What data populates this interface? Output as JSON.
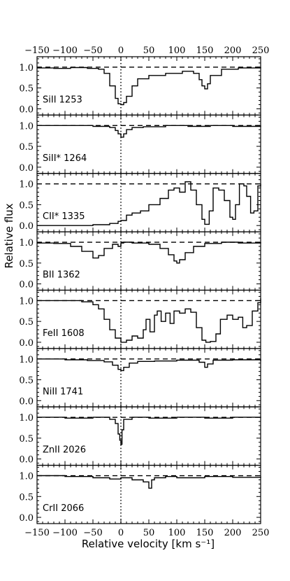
{
  "chart_data": {
    "type": "line",
    "xlabel": "Relative velocity [km s⁻¹]",
    "ylabel": "Relative flux",
    "xlim": [
      -150,
      250
    ],
    "ylim": [
      -0.15,
      1.25
    ],
    "xticks": [
      -150,
      -100,
      -50,
      0,
      50,
      100,
      150,
      200,
      250
    ],
    "xtick_labels": [
      "−150",
      "−100",
      "−50",
      "0",
      "50",
      "100",
      "150",
      "200",
      "250"
    ],
    "yticks": [
      0.0,
      0.5,
      1.0
    ],
    "ytick_labels": [
      "0.0",
      "0.5",
      "1.0"
    ],
    "continuum_level": 1.0,
    "zero_velocity_marker": 0,
    "panels": [
      {
        "label": "SiII 1253",
        "x": [
          -150,
          -120,
          -90,
          -60,
          -40,
          -30,
          -20,
          -10,
          -5,
          0,
          5,
          10,
          20,
          30,
          50,
          80,
          110,
          130,
          140,
          145,
          150,
          155,
          160,
          180,
          210,
          250
        ],
        "y": [
          0.98,
          0.97,
          0.99,
          0.97,
          0.95,
          0.85,
          0.55,
          0.25,
          0.12,
          0.1,
          0.15,
          0.3,
          0.55,
          0.72,
          0.8,
          0.85,
          0.9,
          0.85,
          0.7,
          0.55,
          0.48,
          0.6,
          0.8,
          0.95,
          0.98,
          1.0
        ]
      },
      {
        "label": "SiII* 1264",
        "x": [
          -150,
          -100,
          -50,
          -20,
          -10,
          -5,
          0,
          5,
          10,
          20,
          40,
          80,
          120,
          160,
          200,
          250
        ],
        "y": [
          1.0,
          1.0,
          0.98,
          0.95,
          0.88,
          0.8,
          0.72,
          0.8,
          0.9,
          0.95,
          0.97,
          1.0,
          0.98,
          1.0,
          0.98,
          1.0
        ]
      },
      {
        "label": "CII* 1335",
        "x": [
          -150,
          -100,
          -50,
          -20,
          -5,
          0,
          10,
          20,
          35,
          50,
          70,
          85,
          95,
          105,
          115,
          125,
          135,
          145,
          150,
          158,
          165,
          175,
          185,
          195,
          200,
          205,
          212,
          220,
          225,
          232,
          238,
          245,
          250
        ],
        "y": [
          0.0,
          0.0,
          0.02,
          0.05,
          0.1,
          0.12,
          0.25,
          0.3,
          0.35,
          0.5,
          0.65,
          0.85,
          0.9,
          0.8,
          1.05,
          0.85,
          0.5,
          0.15,
          0.03,
          0.35,
          0.9,
          0.85,
          0.6,
          0.2,
          0.15,
          0.5,
          1.0,
          0.95,
          0.7,
          0.3,
          0.35,
          0.95,
          1.0
        ]
      },
      {
        "label": "BII 1362",
        "x": [
          -150,
          -120,
          -90,
          -70,
          -50,
          -40,
          -30,
          -15,
          -5,
          0,
          5,
          20,
          50,
          70,
          85,
          95,
          100,
          105,
          115,
          130,
          150,
          180,
          210,
          250
        ],
        "y": [
          0.98,
          0.97,
          0.9,
          0.78,
          0.62,
          0.68,
          0.85,
          0.95,
          0.9,
          0.98,
          1.0,
          0.98,
          0.95,
          0.85,
          0.7,
          0.55,
          0.5,
          0.58,
          0.75,
          0.9,
          0.97,
          1.0,
          0.98,
          1.0
        ]
      },
      {
        "label": "FeII 1608",
        "x": [
          -150,
          -110,
          -70,
          -50,
          -40,
          -30,
          -20,
          -10,
          0,
          10,
          20,
          30,
          40,
          45,
          52,
          60,
          65,
          72,
          80,
          88,
          95,
          105,
          115,
          125,
          135,
          145,
          152,
          160,
          170,
          178,
          190,
          200,
          210,
          218,
          225,
          235,
          245,
          250
        ],
        "y": [
          1.0,
          1.0,
          0.97,
          0.9,
          0.8,
          0.55,
          0.3,
          0.1,
          0.0,
          0.05,
          0.15,
          0.1,
          0.3,
          0.55,
          0.25,
          0.65,
          0.75,
          0.5,
          0.7,
          0.45,
          0.75,
          0.7,
          0.8,
          0.72,
          0.35,
          0.05,
          0.0,
          0.02,
          0.2,
          0.55,
          0.65,
          0.55,
          0.6,
          0.35,
          0.4,
          0.75,
          0.95,
          1.05
        ]
      },
      {
        "label": "NiII 1741",
        "x": [
          -150,
          -100,
          -60,
          -30,
          -15,
          -5,
          0,
          5,
          15,
          30,
          60,
          100,
          140,
          150,
          155,
          165,
          200,
          250
        ],
        "y": [
          1.0,
          0.98,
          0.96,
          0.93,
          0.85,
          0.75,
          0.72,
          0.8,
          0.9,
          0.94,
          0.95,
          0.97,
          0.92,
          0.8,
          0.88,
          0.97,
          0.98,
          0.95
        ]
      },
      {
        "label": "ZnII 2026",
        "x": [
          -150,
          -100,
          -50,
          -20,
          -10,
          -5,
          -2,
          0,
          2,
          5,
          20,
          50,
          100,
          150,
          200,
          250
        ],
        "y": [
          1.0,
          0.98,
          1.0,
          0.95,
          0.85,
          0.6,
          0.45,
          0.35,
          0.7,
          0.95,
          1.0,
          0.98,
          1.0,
          0.98,
          1.0,
          0.98
        ]
      },
      {
        "label": "CrII 2066",
        "x": [
          -150,
          -100,
          -50,
          -20,
          0,
          20,
          40,
          50,
          55,
          60,
          80,
          100,
          150,
          200,
          250
        ],
        "y": [
          1.0,
          0.98,
          0.95,
          0.92,
          0.95,
          0.9,
          0.85,
          0.7,
          0.9,
          0.95,
          0.98,
          0.95,
          0.98,
          0.96,
          0.98
        ]
      }
    ]
  }
}
